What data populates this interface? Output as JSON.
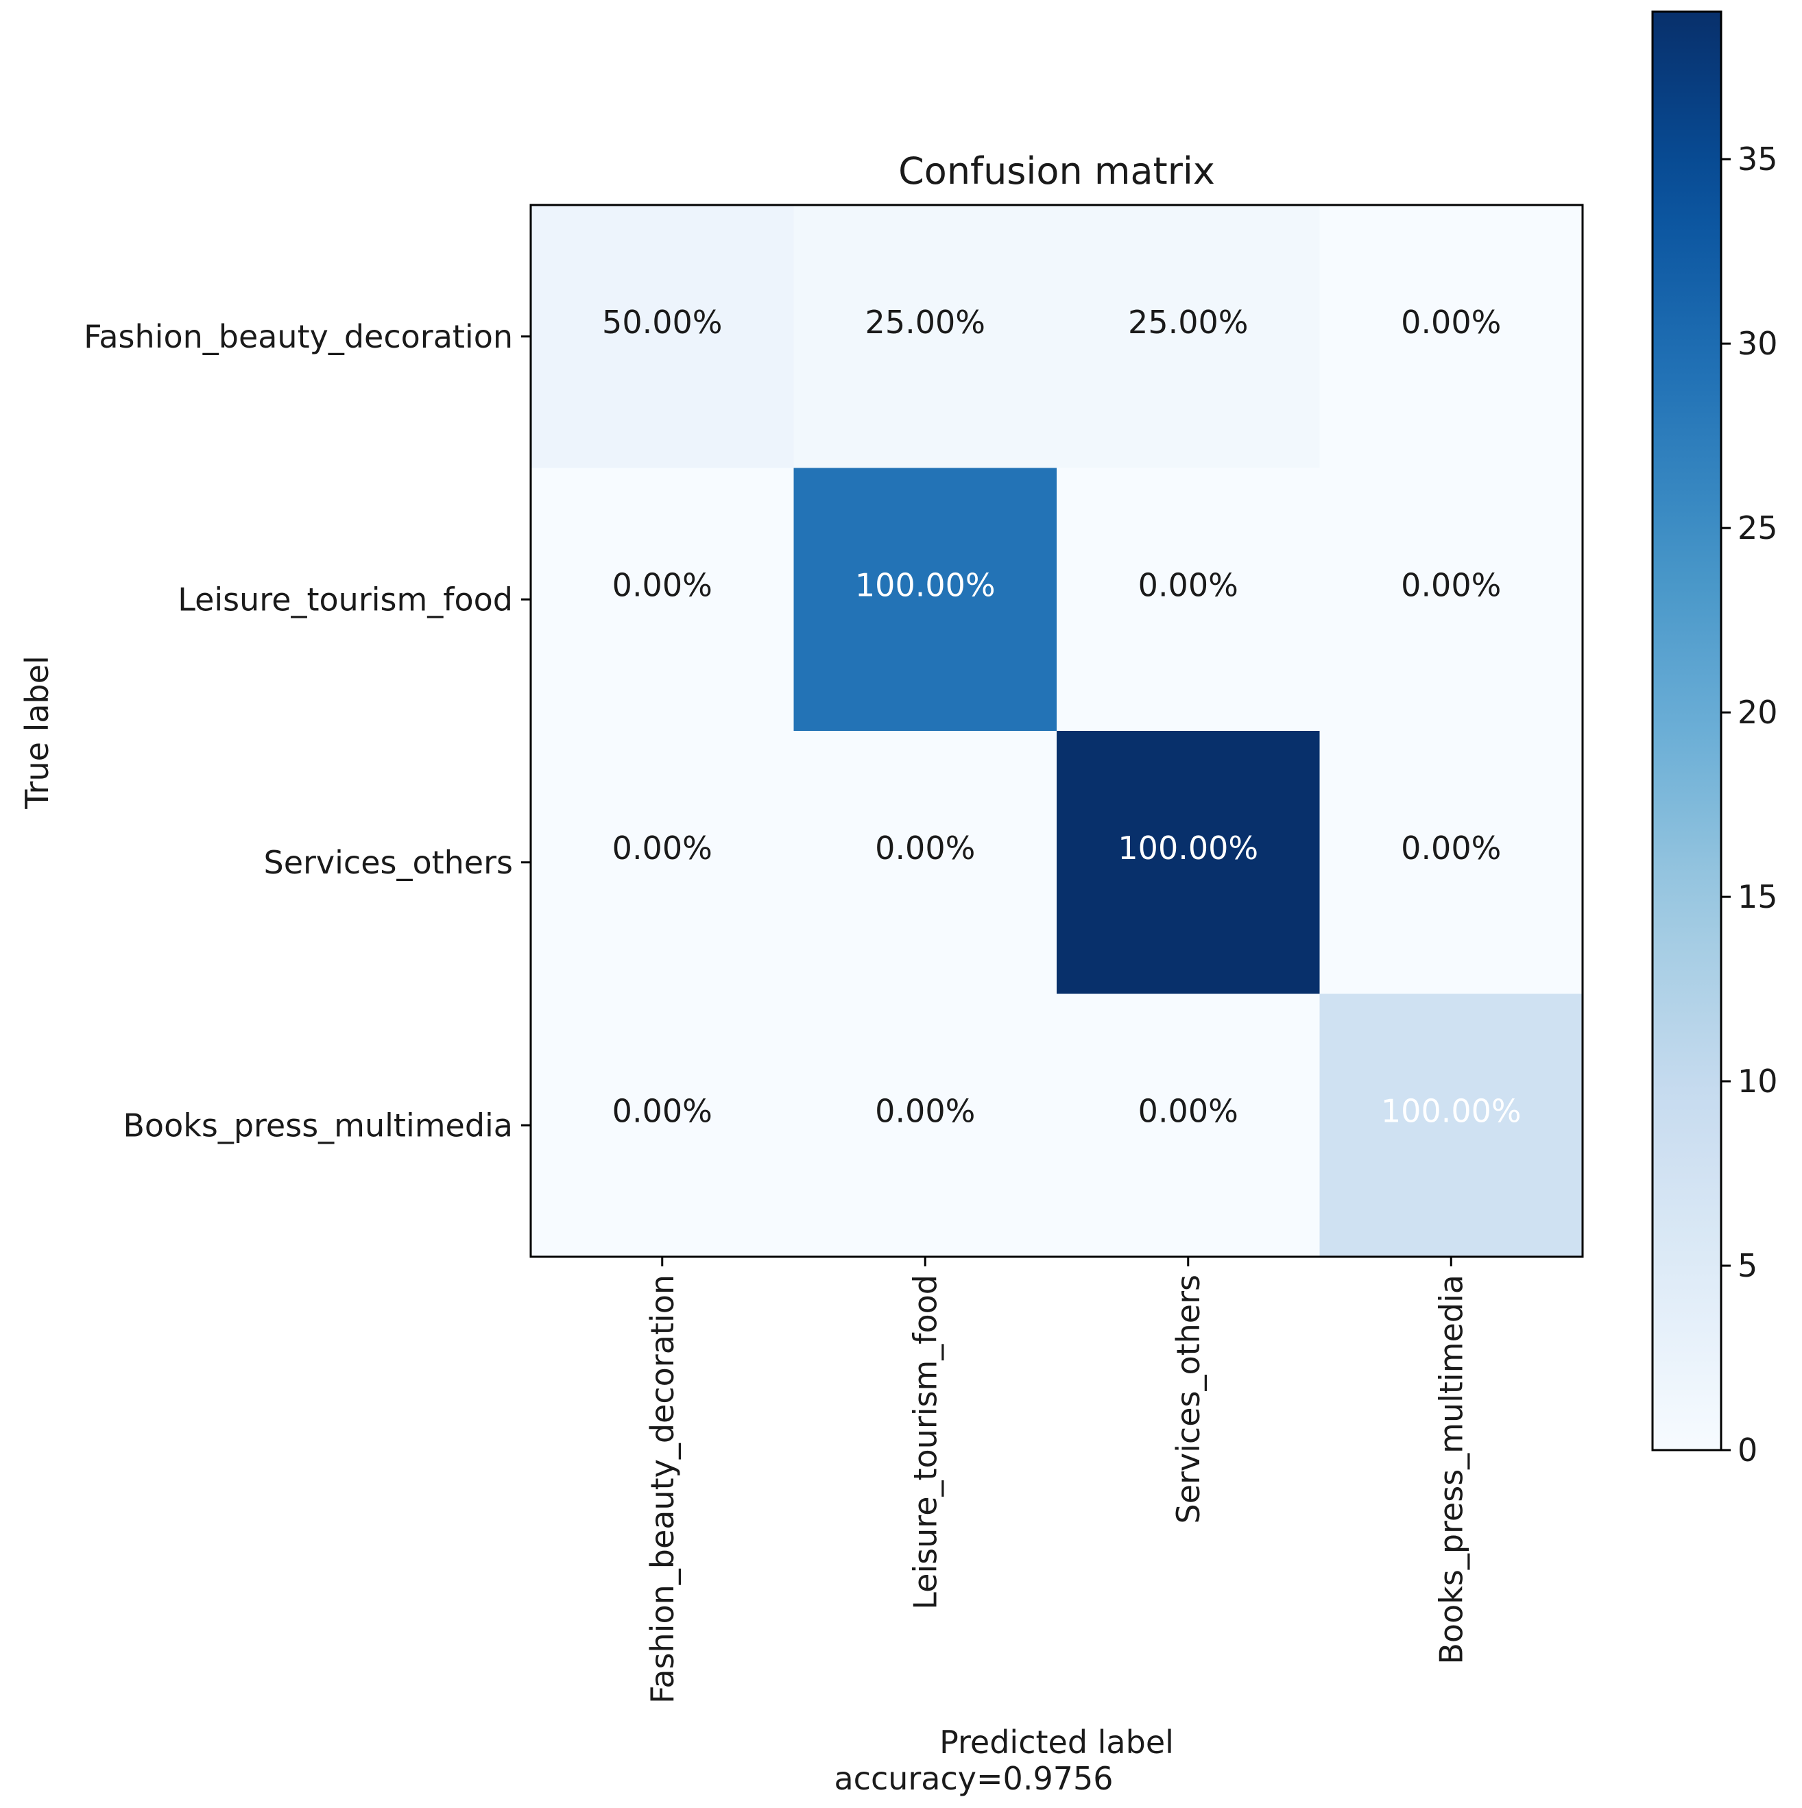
{
  "chart_data": {
    "type": "heatmap",
    "title": "Confusion matrix",
    "xlabel": "Predicted label",
    "ylabel": "True label",
    "footer": "accuracy=0.9756",
    "categories": [
      "Fashion_beauty_decoration",
      "Leisure_tourism_food",
      "Services_others",
      "Books_press_multimedia"
    ],
    "counts": [
      [
        2,
        1,
        1,
        0
      ],
      [
        0,
        29,
        0,
        0
      ],
      [
        0,
        0,
        39,
        0
      ],
      [
        0,
        0,
        0,
        8
      ]
    ],
    "cell_labels": [
      [
        "50.00%",
        "25.00%",
        "25.00%",
        "0.00%"
      ],
      [
        "0.00%",
        "100.00%",
        "0.00%",
        "0.00%"
      ],
      [
        "0.00%",
        "0.00%",
        "100.00%",
        "0.00%"
      ],
      [
        "0.00%",
        "0.00%",
        "0.00%",
        "100.00%"
      ]
    ],
    "colorbar": {
      "range": [
        0,
        39
      ],
      "ticks": [
        0,
        5,
        10,
        15,
        20,
        25,
        30,
        35
      ],
      "tick_labels": [
        "0",
        "5",
        "10",
        "15",
        "20",
        "25",
        "30",
        "35"
      ],
      "colormap": "Blues"
    }
  }
}
